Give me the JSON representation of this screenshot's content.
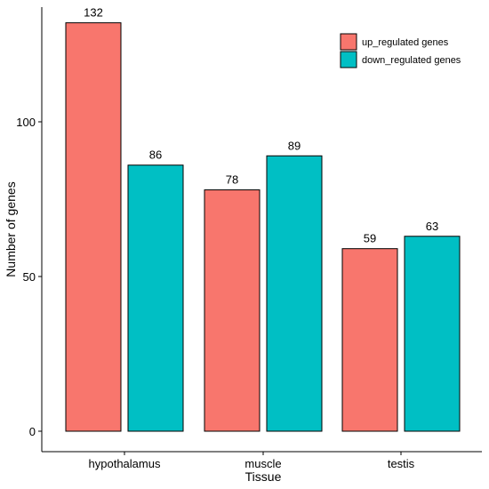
{
  "chart_data": {
    "type": "bar",
    "categories": [
      "hypothalamus",
      "muscle",
      "testis"
    ],
    "series": [
      {
        "name": "up_regulated genes",
        "values": [
          132,
          78,
          59
        ],
        "color": "#F8766D"
      },
      {
        "name": "down_regulated genes",
        "values": [
          86,
          89,
          63
        ],
        "color": "#00BFC4"
      }
    ],
    "xlabel": "Tissue",
    "ylabel": "Number of genes",
    "ylim": [
      0,
      138
    ],
    "yticks": [
      0,
      50,
      100
    ],
    "grid": false,
    "legend": "top-right"
  }
}
